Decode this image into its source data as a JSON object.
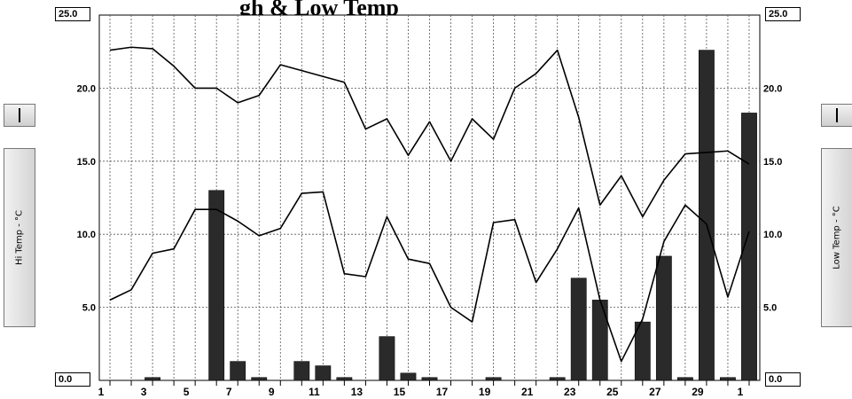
{
  "chart_data": {
    "type": "bar+line",
    "title": "High & Low Temperature",
    "title_visible_fragment": "gh & Low Temp",
    "y_left_label": "Hi Temp - °C",
    "y_right_label": "Low Temp - °C",
    "ylim": [
      0,
      25
    ],
    "y_ticks": [
      "0.0",
      "5.0",
      "10.0",
      "15.0",
      "20.0",
      "25.0"
    ],
    "x_tick_labels": [
      "1",
      "3",
      "5",
      "7",
      "9",
      "11",
      "13",
      "15",
      "17",
      "19",
      "21",
      "23",
      "25",
      "27",
      "29",
      "1"
    ],
    "x_days": [
      1,
      2,
      3,
      4,
      5,
      6,
      7,
      8,
      9,
      10,
      11,
      12,
      13,
      14,
      15,
      16,
      17,
      18,
      19,
      20,
      21,
      22,
      23,
      24,
      25,
      26,
      27,
      28,
      29,
      30,
      31
    ],
    "grid": true,
    "series": [
      {
        "name": "Hi Temp - °C",
        "kind": "line",
        "values": [
          22.6,
          22.8,
          22.7,
          21.5,
          20.0,
          20.0,
          19.0,
          19.5,
          21.6,
          21.2,
          20.8,
          20.4,
          17.2,
          17.9,
          15.4,
          17.7,
          15.0,
          17.9,
          16.5,
          20.0,
          21.0,
          22.6,
          18.0,
          12.0,
          14.0,
          11.2,
          13.7,
          15.5,
          15.6,
          15.7,
          14.8
        ]
      },
      {
        "name": "Low Temp - °C",
        "kind": "line",
        "values": [
          5.5,
          6.2,
          8.7,
          9.0,
          11.7,
          11.7,
          10.9,
          9.9,
          10.4,
          12.8,
          12.9,
          7.3,
          7.1,
          11.2,
          8.3,
          8.0,
          5.0,
          4.0,
          10.8,
          11.0,
          6.7,
          9.0,
          11.8,
          5.5,
          1.3,
          4.2,
          9.5,
          12.0,
          10.7,
          5.7,
          10.2
        ]
      },
      {
        "name": "Rain",
        "kind": "bar",
        "values": [
          0,
          0,
          0.2,
          0,
          0,
          13.0,
          1.3,
          0.2,
          0,
          1.3,
          1.0,
          0.2,
          0,
          3.0,
          0.5,
          0.2,
          0,
          0,
          0.2,
          0,
          0,
          0.2,
          7.0,
          5.5,
          0,
          4.0,
          8.5,
          0.2,
          22.6,
          0.2,
          18.3
        ]
      }
    ],
    "colors": {
      "bars": "#2a2a2a",
      "lines": "#000000",
      "grid": "#555555"
    }
  },
  "panels": {
    "left_label": "Hi Temp - °C",
    "right_label": "Low Temp - °C",
    "top_left_value": "25.0",
    "top_right_value": "25.0",
    "bottom_left_value": "0.0",
    "bottom_right_value": "0.0"
  }
}
